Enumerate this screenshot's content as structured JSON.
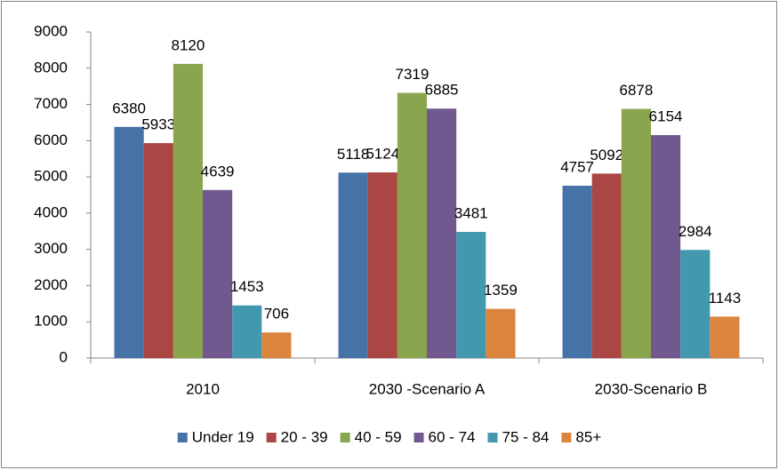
{
  "chart_data": {
    "type": "bar",
    "categories": [
      "2010",
      "2030 -Scenario A",
      "2030-Scenario B"
    ],
    "series": [
      {
        "name": "Under 19",
        "color": "#4572a7",
        "values": [
          6380,
          5118,
          4757
        ]
      },
      {
        "name": "20 - 39",
        "color": "#aa4643",
        "values": [
          5933,
          5124,
          5092
        ]
      },
      {
        "name": "40 - 59",
        "color": "#89a54e",
        "values": [
          8120,
          7319,
          6878
        ]
      },
      {
        "name": "60 - 74",
        "color": "#71588f",
        "values": [
          4639,
          6885,
          6154
        ]
      },
      {
        "name": "75 - 84",
        "color": "#4198af",
        "values": [
          1453,
          3481,
          2984
        ]
      },
      {
        "name": "85+",
        "color": "#db843d",
        "values": [
          706,
          1359,
          1143
        ]
      }
    ],
    "ylim": [
      0,
      9000
    ],
    "yticks": [
      0,
      1000,
      2000,
      3000,
      4000,
      5000,
      6000,
      7000,
      8000,
      9000
    ],
    "grid": false,
    "legend": "bottom"
  }
}
